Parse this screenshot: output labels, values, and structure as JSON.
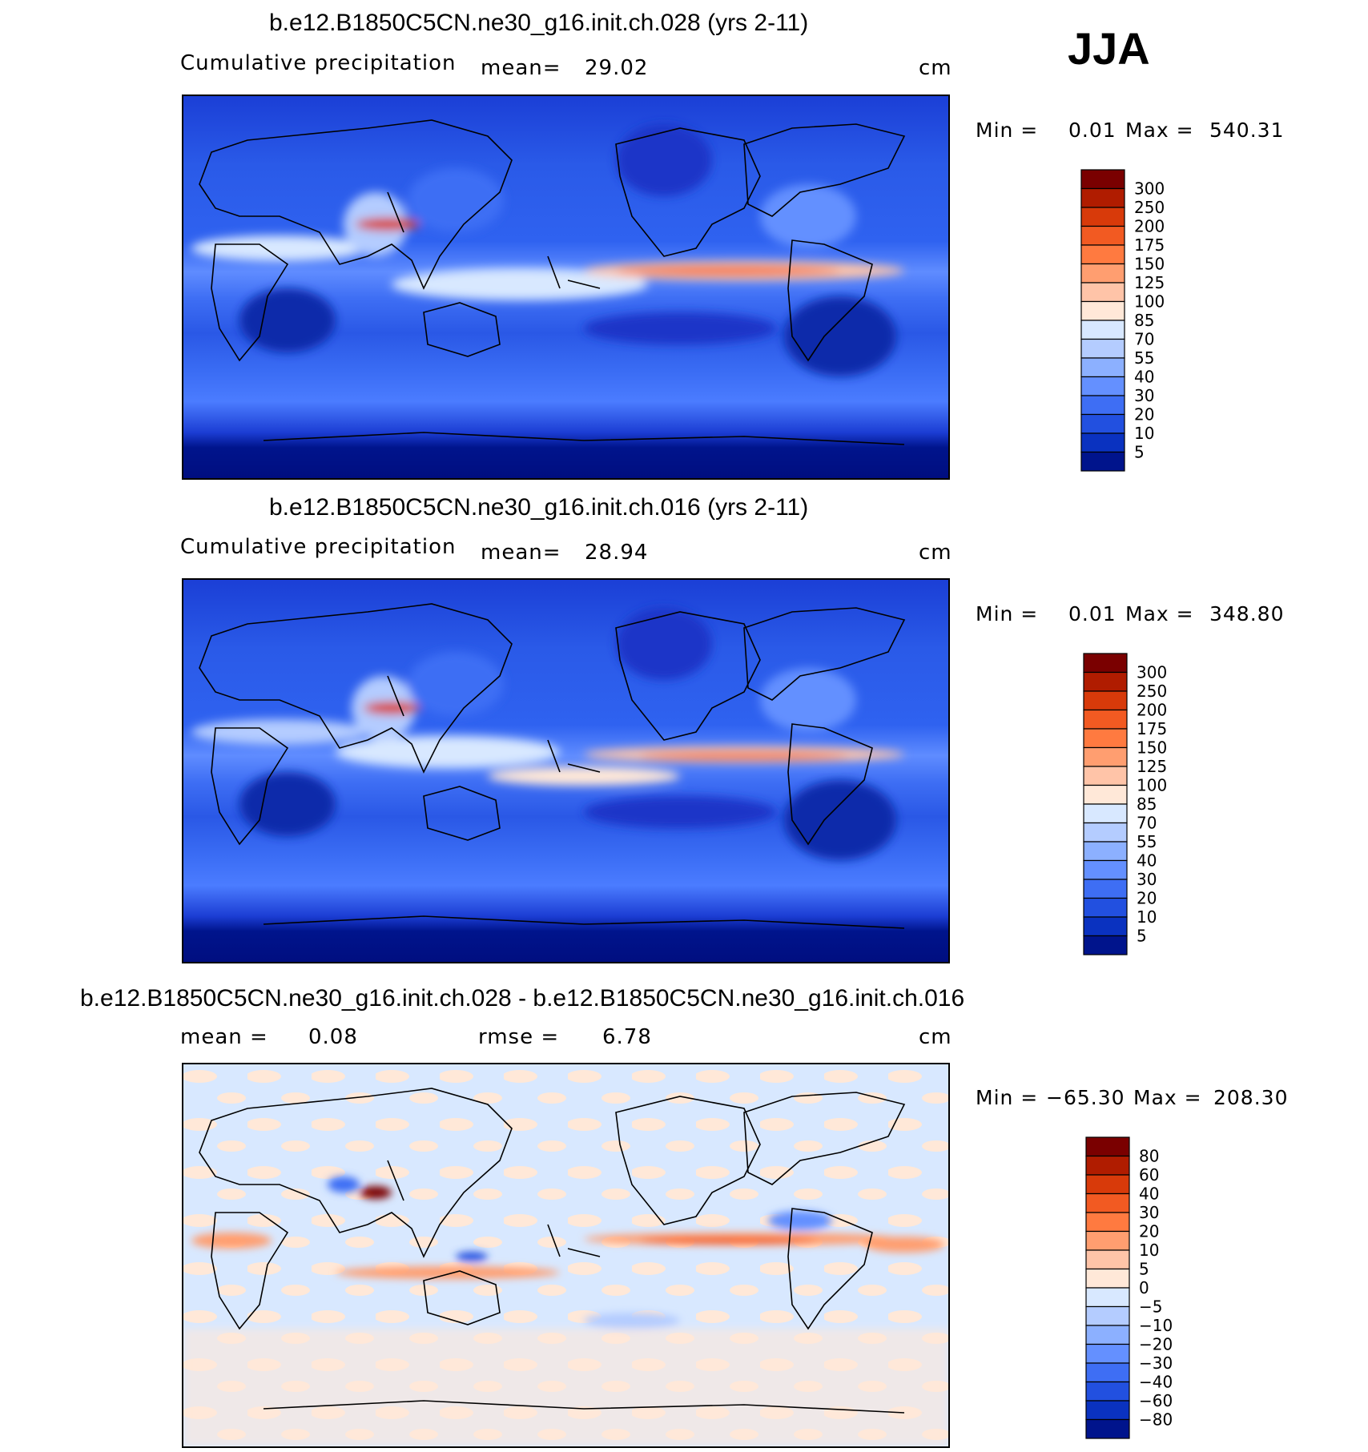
{
  "season": "JJA",
  "panels": [
    {
      "title": "b.e12.B1850C5CN.ne30_g16.init.ch.028 (yrs 2-11)",
      "left_label": "Cumulative precipitation",
      "stat1_label": "mean=",
      "stat1_value": "29.02",
      "units": "cm",
      "min_label": "Min =",
      "min_value": "0.01",
      "max_label": "Max =",
      "max_value": "540.31"
    },
    {
      "title": "b.e12.B1850C5CN.ne30_g16.init.ch.016 (yrs 2-11)",
      "left_label": "Cumulative precipitation",
      "stat1_label": "mean=",
      "stat1_value": "28.94",
      "units": "cm",
      "min_label": "Min =",
      "min_value": "0.01",
      "max_label": "Max =",
      "max_value": "348.80"
    },
    {
      "title": "b.e12.B1850C5CN.ne30_g16.init.ch.028 - b.e12.B1850C5CN.ne30_g16.init.ch.016",
      "stat1_label": "mean =",
      "stat1_value": "0.08",
      "stat2_label": "rmse =",
      "stat2_value": "6.78",
      "units": "cm",
      "min_label": "Min =",
      "min_value": "−65.30",
      "max_label": "Max =",
      "max_value": "208.30"
    }
  ],
  "chart_data": [
    {
      "type": "heatmap",
      "title": "b.e12.B1850C5CN.ne30_g16.init.ch.028 (yrs 2-11)",
      "subtitle": "Cumulative precipitation",
      "units": "cm",
      "mean": 29.02,
      "min": 0.01,
      "max": 540.31,
      "colorbar_levels": [
        "300",
        "250",
        "200",
        "175",
        "150",
        "125",
        "100",
        "85",
        "70",
        "55",
        "40",
        "30",
        "20",
        "10",
        "5"
      ],
      "colorbar_colors": [
        "#7a0000",
        "#b01c00",
        "#d83a0a",
        "#f25a22",
        "#ff7a40",
        "#ff9e70",
        "#ffc4a8",
        "#ffe8d8",
        "#d8e8ff",
        "#b4ccff",
        "#8cb0ff",
        "#6490ff",
        "#3e6ef4",
        "#2250e0",
        "#0a32c0",
        "#00148c"
      ]
    },
    {
      "type": "heatmap",
      "title": "b.e12.B1850C5CN.ne30_g16.init.ch.016 (yrs 2-11)",
      "subtitle": "Cumulative precipitation",
      "units": "cm",
      "mean": 28.94,
      "min": 0.01,
      "max": 348.8,
      "colorbar_levels": [
        "300",
        "250",
        "200",
        "175",
        "150",
        "125",
        "100",
        "85",
        "70",
        "55",
        "40",
        "30",
        "20",
        "10",
        "5"
      ],
      "colorbar_colors": [
        "#7a0000",
        "#b01c00",
        "#d83a0a",
        "#f25a22",
        "#ff7a40",
        "#ff9e70",
        "#ffc4a8",
        "#ffe8d8",
        "#d8e8ff",
        "#b4ccff",
        "#8cb0ff",
        "#6490ff",
        "#3e6ef4",
        "#2250e0",
        "#0a32c0",
        "#00148c"
      ]
    },
    {
      "type": "heatmap",
      "title": "b.e12.B1850C5CN.ne30_g16.init.ch.028 - b.e12.B1850C5CN.ne30_g16.init.ch.016",
      "units": "cm",
      "mean": 0.08,
      "rmse": 6.78,
      "min": -65.3,
      "max": 208.3,
      "colorbar_levels": [
        "80",
        "60",
        "40",
        "30",
        "20",
        "10",
        "5",
        "0",
        "−5",
        "−10",
        "−20",
        "−30",
        "−40",
        "−60",
        "−80"
      ],
      "colorbar_colors": [
        "#7a0000",
        "#b01c00",
        "#d83a0a",
        "#f25a22",
        "#ff7a40",
        "#ff9e70",
        "#ffc4a8",
        "#ffe8d8",
        "#d8e8ff",
        "#b4ccff",
        "#8cb0ff",
        "#6490ff",
        "#3e6ef4",
        "#2250e0",
        "#0a32c0",
        "#00148c"
      ]
    }
  ]
}
